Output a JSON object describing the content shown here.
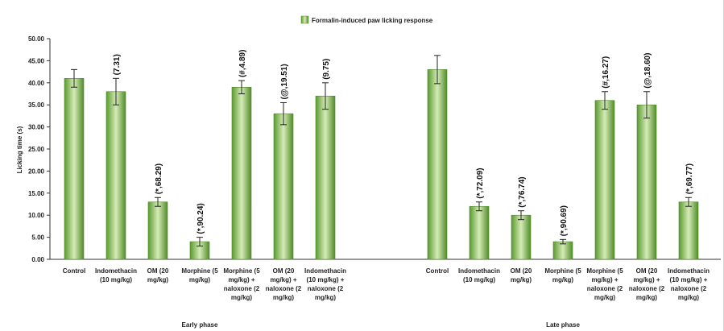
{
  "chart_data": {
    "type": "bar",
    "ylabel": "Licking time (s)",
    "ylim": [
      0,
      50
    ],
    "yticks": [
      "0.00",
      "5.00",
      "10.00",
      "15.00",
      "20.00",
      "25.00",
      "30.00",
      "35.00",
      "40.00",
      "45.00",
      "50.00"
    ],
    "grid": false,
    "legend": {
      "position": "top-center",
      "entries": [
        "Formalin-induced paw licking response"
      ]
    },
    "series": [
      {
        "name": "Formalin-induced paw licking response",
        "color": "#5e9a32"
      }
    ],
    "groups": [
      {
        "label": "Early phase",
        "categories": [
          "Control",
          "Indomethacin (10 mg/kg)",
          "OM (20 mg/kg)",
          "Morphine (5 mg/kg)",
          "Morphine (5 mg/kg) + naloxone (2 mg/kg)",
          "OM (20 mg/kg) + naloxone (2 mg/kg)",
          "Indomethacin (10 mg/kg) + naloxone (2 mg/kg)"
        ],
        "category_lines": [
          [
            "Control"
          ],
          [
            "Indomethacin",
            "(10 mg/kg)"
          ],
          [
            "OM (20",
            "mg/kg)"
          ],
          [
            "Morphine (5",
            "mg/kg)"
          ],
          [
            "Morphine (5",
            "mg/kg) +",
            "naloxone (2",
            "mg/kg)"
          ],
          [
            "OM (20",
            "mg/kg) +",
            "naloxone (2",
            "mg/kg)"
          ],
          [
            "Indomethacin",
            "(10 mg/kg) +",
            "naloxone (2",
            "mg/kg)"
          ]
        ],
        "values": [
          41,
          38,
          13,
          4,
          39,
          33,
          37
        ],
        "errors": [
          2,
          3,
          1,
          1,
          1.5,
          2.5,
          3
        ],
        "bar_labels": [
          "",
          "(7.31)",
          "(*,68.29)",
          "(*,90.24)",
          "(#,4.89)",
          "(@,19.51)",
          "(9.75)"
        ]
      },
      {
        "label": "Late phase",
        "categories": [
          "Control",
          "Indomethacin (10 mg/kg)",
          "OM (20 mg/kg)",
          "Morphine (5 mg/kg)",
          "Morphine (5 mg/kg) + naloxone (2 mg/kg)",
          "OM (20 mg/kg) + naloxone (2 mg/kg)",
          "Indomethacin (10 mg/kg) + naloxone (2 mg/kg)"
        ],
        "category_lines": [
          [
            "Control"
          ],
          [
            "Indomethacin",
            "(10 mg/kg)"
          ],
          [
            "OM (20",
            "mg/kg)"
          ],
          [
            "Morphine (5",
            "mg/kg)"
          ],
          [
            "Morphine (5",
            "mg/kg) +",
            "naloxone (2",
            "mg/kg)"
          ],
          [
            "OM (20",
            "mg/kg) +",
            "naloxone (2",
            "mg/kg)"
          ],
          [
            "Indomethacin",
            "(10 mg/kg) +",
            "naloxone (2",
            "mg/kg)"
          ]
        ],
        "values": [
          43,
          12,
          10,
          4,
          36,
          35,
          13
        ],
        "errors": [
          3.2,
          1,
          1,
          0.5,
          2,
          3,
          1
        ],
        "bar_labels": [
          "",
          "(*,72.09)",
          "(*,76.74)",
          "(*,90.69)",
          "(#,16.27)",
          "(@,18.60)",
          "(*,69.77)"
        ]
      }
    ]
  }
}
